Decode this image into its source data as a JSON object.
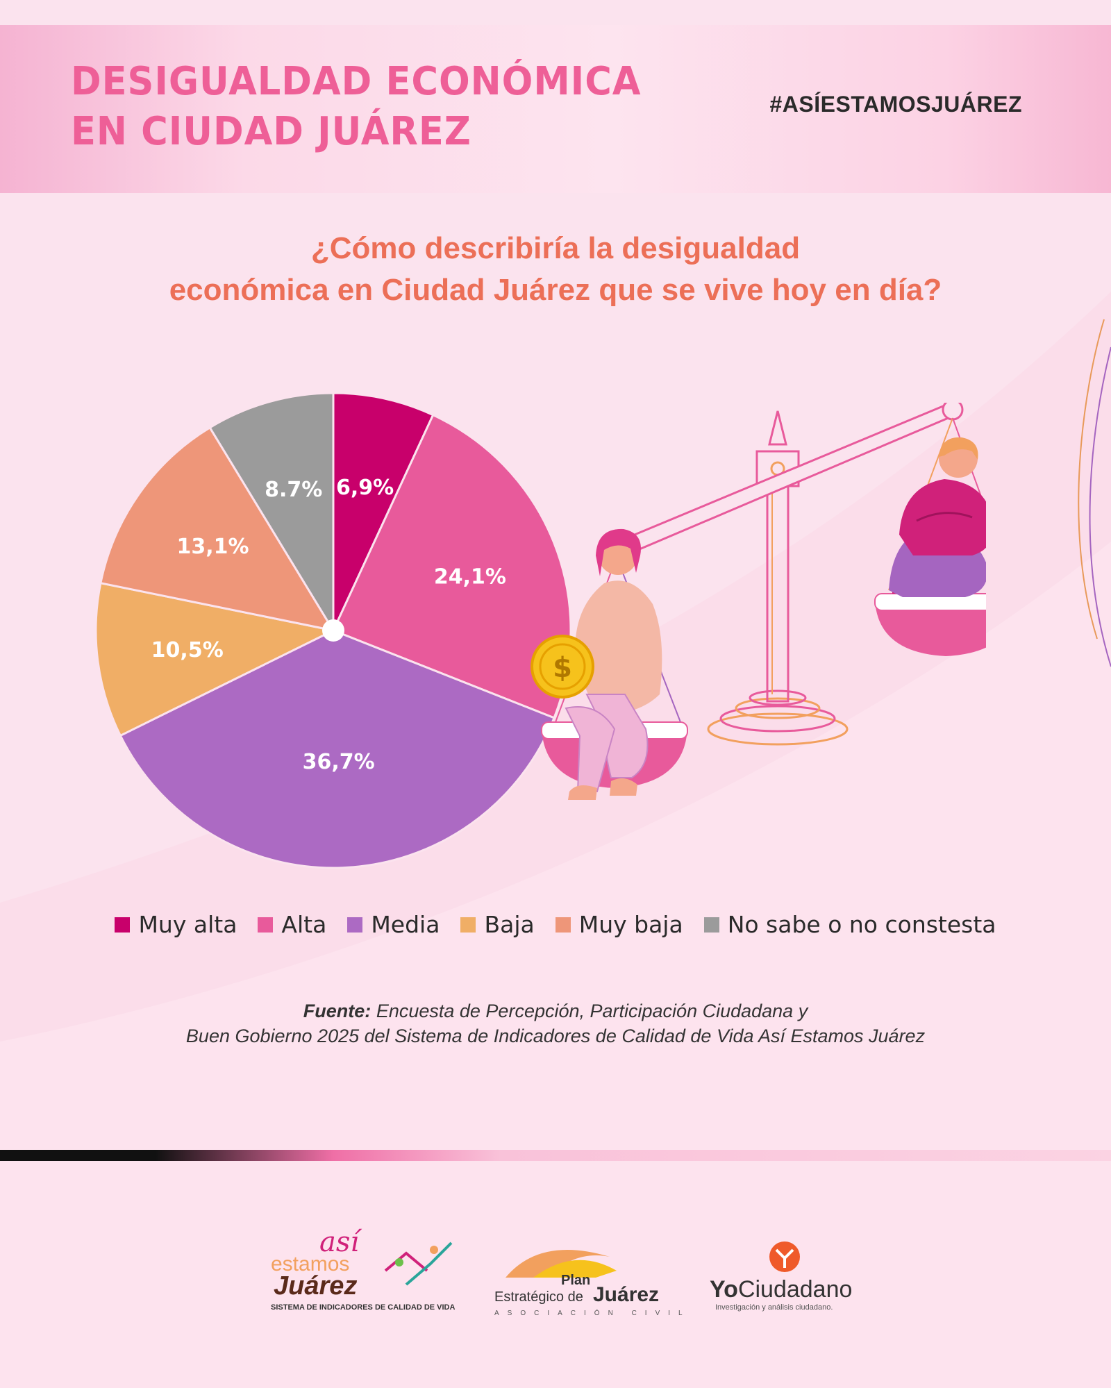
{
  "header": {
    "title_line1": "DESIGUALDAD ECONÓMICA",
    "title_line2": "EN CIUDAD JUÁREZ",
    "hashtag": "#ASÍESTAMOSJUÁREZ"
  },
  "chart_data": {
    "type": "pie",
    "title": "¿Cómo describiría la desigualdad económica en Ciudad Juárez que se vive hoy en día?",
    "title_line1": "¿Cómo describiría la desigualdad",
    "title_line2": "económica en Ciudad Juárez que se vive hoy en día?",
    "legend_placement": "bottom",
    "slices": [
      {
        "category": "Muy alta",
        "value": 6.9,
        "label": "6,9%",
        "color": "#c8006b"
      },
      {
        "category": "Alta",
        "value": 24.1,
        "label": "24,1%",
        "color": "#e85a9b"
      },
      {
        "category": "Media",
        "value": 36.7,
        "label": "36,7%",
        "color": "#ac6ac3"
      },
      {
        "category": "Baja",
        "value": 10.5,
        "label": "10,5%",
        "color": "#f0ae66"
      },
      {
        "category": "Muy baja",
        "value": 13.1,
        "label": "13,1%",
        "color": "#ee9679"
      },
      {
        "category": "No sabe o no constesta",
        "value": 8.7,
        "label": "8.7%",
        "color": "#9b9b9b"
      }
    ]
  },
  "legend": {
    "items": [
      {
        "label": "Muy alta",
        "color": "#c8006b"
      },
      {
        "label": "Alta",
        "color": "#e85a9b"
      },
      {
        "label": "Media",
        "color": "#ac6ac3"
      },
      {
        "label": "Baja",
        "color": "#f0ae66"
      },
      {
        "label": "Muy baja",
        "color": "#ee9679"
      },
      {
        "label": "No sabe o no constesta",
        "color": "#9b9b9b"
      }
    ]
  },
  "source": {
    "label": "Fuente:",
    "line1": "Encuesta de Percepción, Participación Ciudadana y",
    "line2": "Buen Gobierno 2025 del Sistema de Indicadores de Calidad de Vida Así Estamos Juárez"
  },
  "logos": {
    "asi_estamos": {
      "word1": "así",
      "word2": "estamos",
      "word3": "Juárez",
      "subtitle": "SISTEMA DE INDICADORES DE CALIDAD DE VIDA"
    },
    "plan_estrategico": {
      "word1": "Plan",
      "word2": "Estratégico de",
      "word3": "Juárez",
      "subtitle": "ASOCIACIÓN CIVIL"
    },
    "yo_ciudadano": {
      "word1": "Yo",
      "word2": "Ciudadano",
      "subtitle": "Investigación y análisis ciudadano."
    }
  },
  "illustration": {
    "coin_symbol": "$",
    "colors": {
      "magenta": "#d0217a",
      "pink": "#e85a9b",
      "purple": "#a565c0",
      "orange": "#f2a05e",
      "gold": "#f6c21c",
      "skin": "#f4a78b"
    }
  }
}
